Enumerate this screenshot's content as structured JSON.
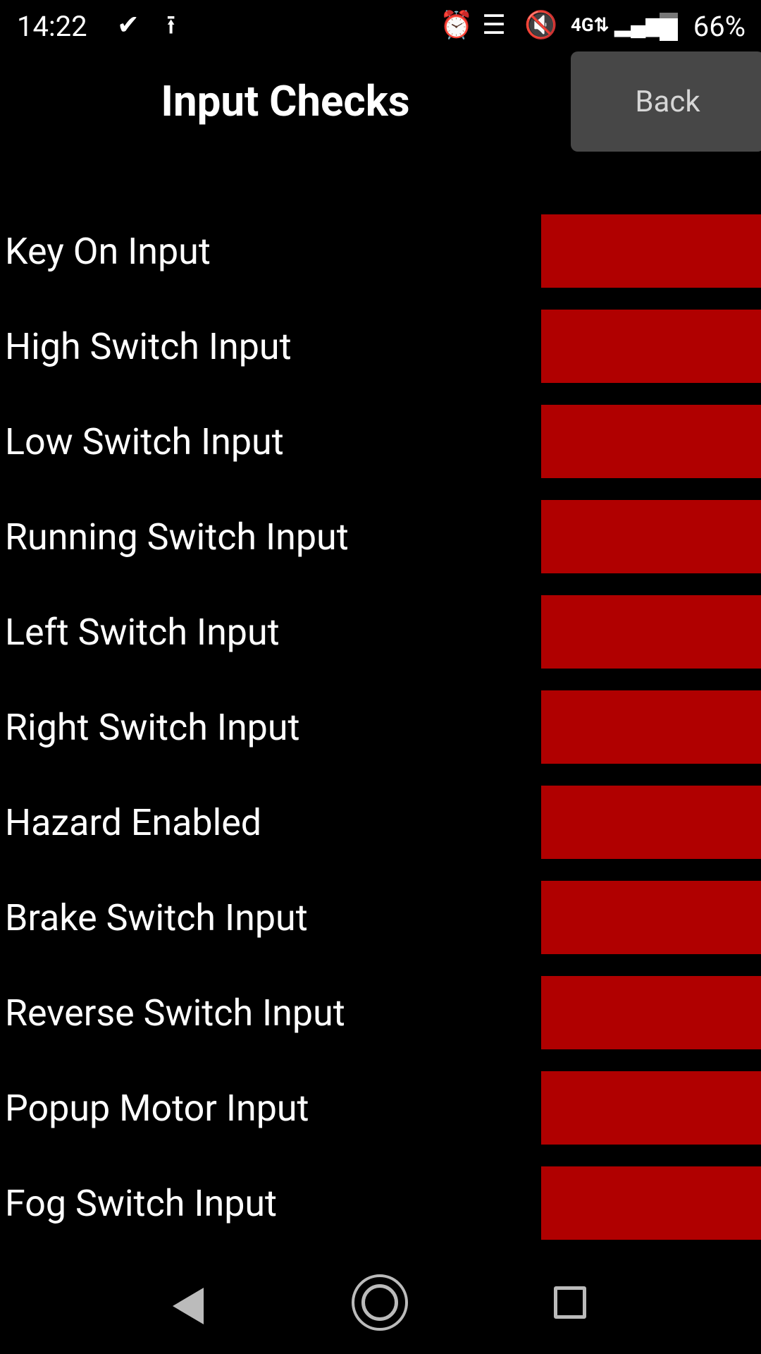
{
  "status_bar": {
    "time": "14:22",
    "battery": "66%",
    "icons": [
      "check-circle-icon",
      "upload-icon",
      "alarm-icon",
      "message-icon",
      "mute-icon",
      "4g-lte-icon",
      "signal-icon",
      "battery-icon"
    ]
  },
  "header": {
    "title": "Input Checks",
    "back_label": "Back"
  },
  "indicator_color": "#b00000",
  "inputs": [
    {
      "label": "Key On Input",
      "state": "off"
    },
    {
      "label": "High Switch Input",
      "state": "off"
    },
    {
      "label": "Low Switch Input",
      "state": "off"
    },
    {
      "label": "Running Switch Input",
      "state": "off"
    },
    {
      "label": "Left Switch Input",
      "state": "off"
    },
    {
      "label": "Right Switch Input",
      "state": "off"
    },
    {
      "label": "Hazard Enabled",
      "state": "off"
    },
    {
      "label": "Brake Switch Input",
      "state": "off"
    },
    {
      "label": "Reverse Switch Input",
      "state": "off"
    },
    {
      "label": "Popup Motor Input",
      "state": "off"
    },
    {
      "label": "Fog Switch Input",
      "state": "off"
    }
  ]
}
